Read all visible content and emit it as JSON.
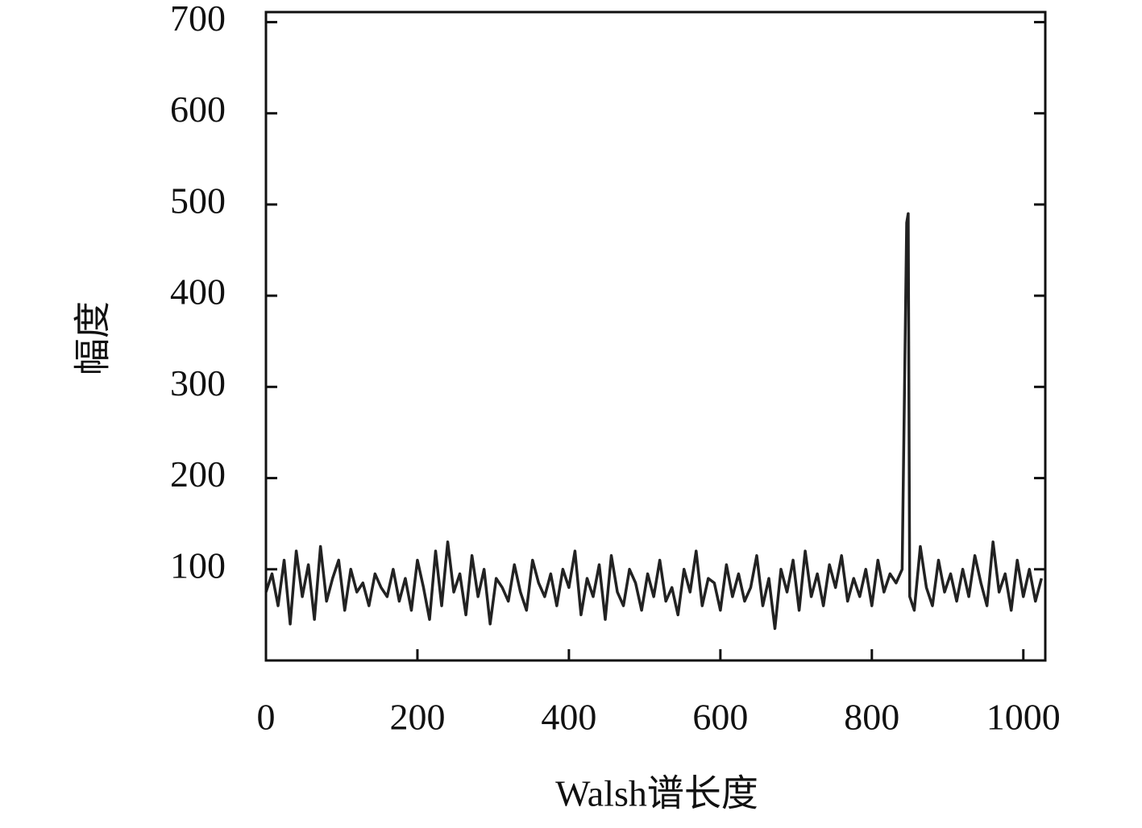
{
  "chart_data": {
    "type": "line",
    "xlabel": "Walsh谱长度",
    "ylabel": "幅度",
    "x": [
      0,
      8,
      16,
      24,
      32,
      40,
      48,
      56,
      64,
      72,
      80,
      88,
      96,
      104,
      112,
      120,
      128,
      136,
      144,
      152,
      160,
      168,
      176,
      184,
      192,
      200,
      208,
      216,
      224,
      232,
      240,
      248,
      256,
      264,
      272,
      280,
      288,
      296,
      304,
      312,
      320,
      328,
      336,
      344,
      352,
      360,
      368,
      376,
      384,
      392,
      400,
      408,
      416,
      424,
      432,
      440,
      448,
      456,
      464,
      472,
      480,
      488,
      496,
      504,
      512,
      520,
      528,
      536,
      544,
      552,
      560,
      568,
      576,
      584,
      592,
      600,
      608,
      616,
      624,
      632,
      640,
      648,
      656,
      664,
      672,
      680,
      688,
      696,
      704,
      712,
      720,
      728,
      736,
      744,
      752,
      760,
      768,
      776,
      784,
      792,
      800,
      808,
      816,
      824,
      832,
      840,
      846,
      848,
      850,
      856,
      864,
      872,
      880,
      888,
      896,
      904,
      912,
      920,
      928,
      936,
      944,
      952,
      960,
      968,
      976,
      984,
      992,
      1000,
      1008,
      1016,
      1024
    ],
    "series": [
      {
        "color": "#222222",
        "values": [
          75,
          95,
          60,
          110,
          40,
          120,
          70,
          105,
          45,
          125,
          65,
          90,
          110,
          55,
          100,
          75,
          85,
          60,
          95,
          80,
          70,
          100,
          65,
          90,
          55,
          110,
          80,
          45,
          120,
          60,
          130,
          75,
          95,
          50,
          115,
          70,
          100,
          40,
          90,
          80,
          65,
          105,
          75,
          55,
          110,
          85,
          70,
          95,
          60,
          100,
          80,
          120,
          50,
          90,
          70,
          105,
          45,
          115,
          75,
          60,
          100,
          85,
          55,
          95,
          70,
          110,
          65,
          80,
          50,
          100,
          75,
          120,
          60,
          90,
          85,
          55,
          105,
          70,
          95,
          65,
          80,
          115,
          60,
          90,
          35,
          100,
          75,
          110,
          55,
          120,
          70,
          95,
          60,
          105,
          80,
          115,
          65,
          90,
          70,
          100,
          60,
          110,
          75,
          95,
          85,
          100,
          480,
          490,
          70,
          55,
          125,
          80,
          60,
          110,
          75,
          95,
          65,
          100,
          70,
          115,
          85,
          60,
          130,
          75,
          95,
          55,
          110,
          70,
          100,
          65,
          90
        ]
      }
    ],
    "xlim": [
      0,
      1029
    ],
    "xticks": [
      0,
      200,
      400,
      600,
      800,
      1000
    ],
    "ylim": [
      0,
      711
    ],
    "yticks": [
      100,
      200,
      300,
      400,
      500,
      600,
      700
    ]
  }
}
